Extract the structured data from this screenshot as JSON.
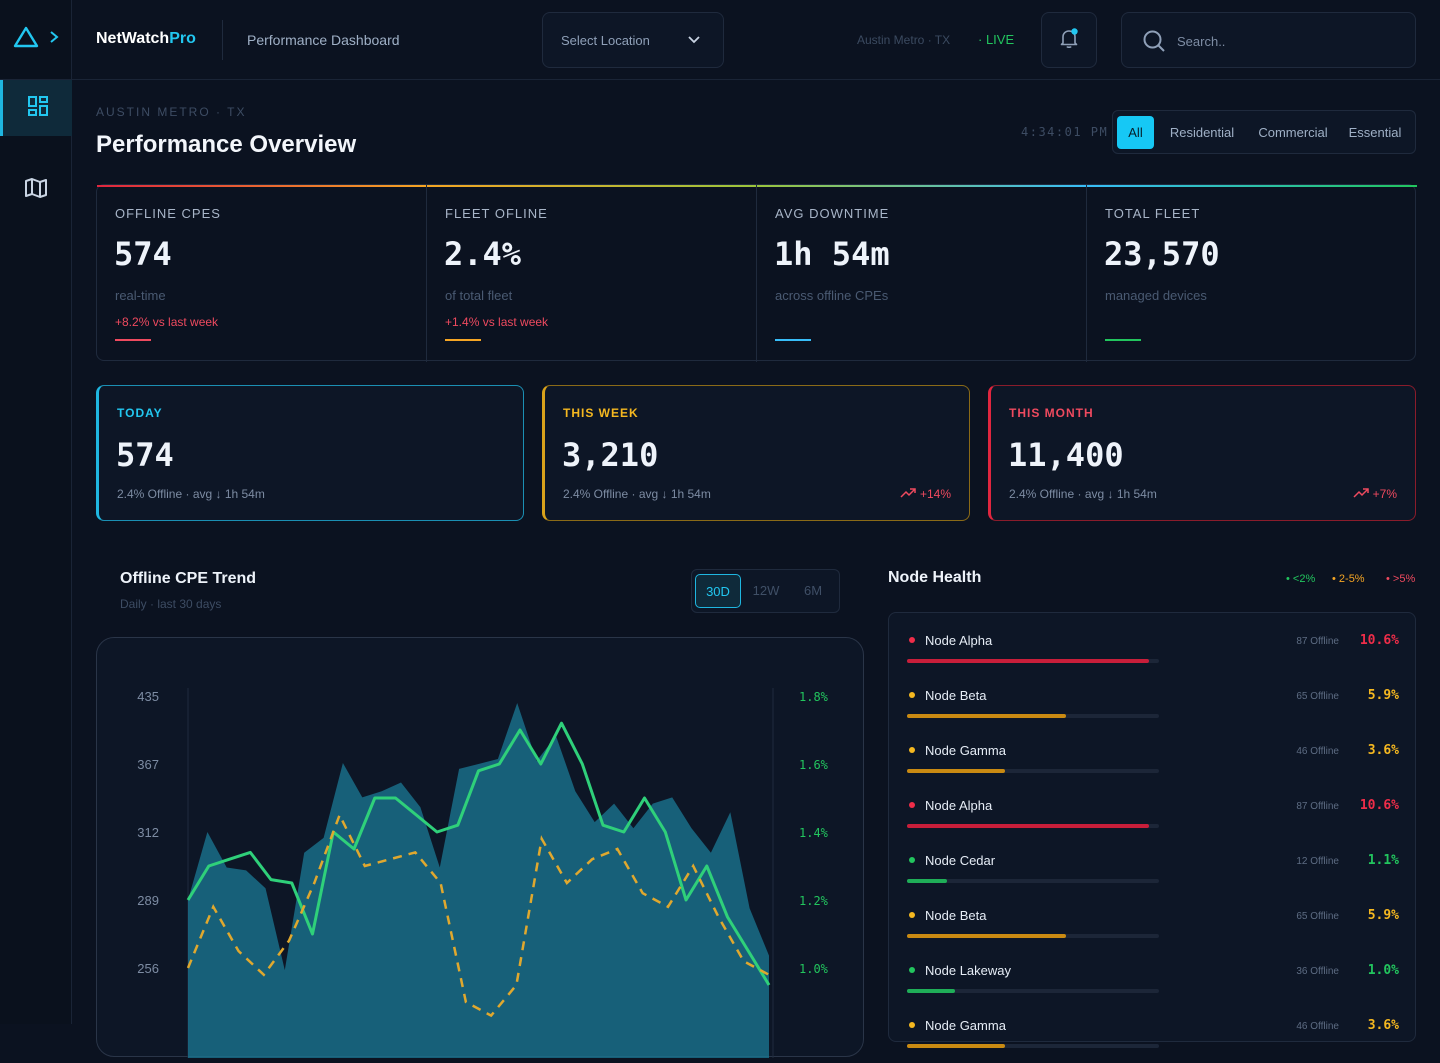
{
  "header": {
    "brand_main": "NetWatch",
    "brand_accent": "Pro",
    "page_name": "Performance Dashboard",
    "location_select": "Select Location",
    "location_meta": "Austin Metro · TX",
    "live_label": "· LIVE",
    "search_placeholder": "Search.."
  },
  "overview": {
    "eyebrow": "AUSTIN METRO · TX",
    "title": "Performance Overview",
    "clock": "4:34:01 PM",
    "filters": [
      "All",
      "Residential",
      "Commercial",
      "Essential"
    ],
    "active_filter": "All"
  },
  "kpis": [
    {
      "label": "OFFLINE CPES",
      "value": "574",
      "sub": "real-time",
      "delta": "+8.2% vs last week",
      "color": "#ef4a5f"
    },
    {
      "label": "FLEET OFLINE",
      "value": "2.4%",
      "sub": "of total fleet",
      "delta": "+1.4% vs last week",
      "color": "#f5a524"
    },
    {
      "label": "AVG DOWNTIME",
      "value": "1h 54m",
      "sub": "across offline CPEs",
      "delta": "",
      "color": "#38bdf8"
    },
    {
      "label": "TOTAL FLEET",
      "value": "23,570",
      "sub": "managed devices",
      "delta": "",
      "color": "#22c55e"
    }
  ],
  "periods": [
    {
      "label": "TODAY",
      "value": "574",
      "sub": "2.4% Offline · avg ↓ 1h 54m",
      "trend": "",
      "color": "#1fb6e0"
    },
    {
      "label": "THIS WEEK",
      "value": "3,210",
      "sub": "2.4% Offline · avg ↓ 1h 54m",
      "trend": "+14%",
      "color": "#d9a21b"
    },
    {
      "label": "THIS MONTH",
      "value": "11,400",
      "sub": "2.4% Offline · avg ↓ 1h 54m",
      "trend": "+7%",
      "color": "#e0263f"
    }
  ],
  "trend": {
    "title": "Offline CPE Trend",
    "subtitle": "Daily · last 30 days",
    "ranges": [
      "30D",
      "12W",
      "6M"
    ],
    "active_range": "30D"
  },
  "chart_data": {
    "type": "area",
    "y_left_ticks": [
      "435",
      "367",
      "312",
      "289",
      "256"
    ],
    "y_right_ticks": [
      "1.8%",
      "1.6%",
      "1.4%",
      "1.2%",
      "1.0%"
    ],
    "series": [
      {
        "kind": "area",
        "color": "#1b7a96",
        "values": [
          289,
          312,
          300,
          299,
          293,
          255,
          305,
          310,
          368,
          340,
          345,
          352,
          332,
          300,
          363,
          367,
          372,
          428,
          370,
          395,
          345,
          320,
          335,
          315,
          335,
          340,
          315,
          305,
          328,
          285,
          262
        ]
      },
      {
        "kind": "line",
        "color": "#2fd07a",
        "values": [
          1.2,
          1.3,
          1.32,
          1.34,
          1.26,
          1.25,
          1.1,
          1.4,
          1.35,
          1.5,
          1.5,
          1.45,
          1.4,
          1.42,
          1.58,
          1.6,
          1.7,
          1.6,
          1.72,
          1.6,
          1.42,
          1.4,
          1.5,
          1.4,
          1.2,
          1.3,
          1.15,
          1.05,
          0.95
        ]
      },
      {
        "kind": "dashed",
        "color": "#e0a82e",
        "values": [
          1.0,
          1.18,
          1.05,
          0.98,
          1.08,
          1.25,
          1.45,
          1.3,
          1.32,
          1.34,
          1.25,
          0.9,
          0.86,
          0.95,
          1.38,
          1.25,
          1.32,
          1.35,
          1.22,
          1.18,
          1.3,
          1.15,
          1.02,
          0.98
        ]
      }
    ]
  },
  "node_health": {
    "title": "Node Health",
    "legend": [
      {
        "label": "• <2%",
        "color": "#22c55e"
      },
      {
        "label": "• 2-5%",
        "color": "#f5a524"
      },
      {
        "label": "• >5%",
        "color": "#ef4a5f"
      }
    ],
    "nodes": [
      {
        "name": "Node Alpha",
        "offline": "87 Offline",
        "pct": "10.6%",
        "level": 0.96,
        "color": "#ef2d49",
        "bar": "#c81e3a"
      },
      {
        "name": "Node Beta",
        "offline": "65 Offline",
        "pct": "5.9%",
        "level": 0.63,
        "color": "#f5b820",
        "bar": "#c98a12"
      },
      {
        "name": "Node Gamma",
        "offline": "46 Offline",
        "pct": "3.6%",
        "level": 0.39,
        "color": "#f5b820",
        "bar": "#c98a12"
      },
      {
        "name": "Node Alpha",
        "offline": "87 Offline",
        "pct": "10.6%",
        "level": 0.96,
        "color": "#ef2d49",
        "bar": "#c81e3a"
      },
      {
        "name": "Node Cedar",
        "offline": "12 Offline",
        "pct": "1.1%",
        "level": 0.16,
        "color": "#22c55e",
        "bar": "#1fae58"
      },
      {
        "name": "Node Beta",
        "offline": "65 Offline",
        "pct": "5.9%",
        "level": 0.63,
        "color": "#f5b820",
        "bar": "#c98a12"
      },
      {
        "name": "Node Lakeway",
        "offline": "36 Offline",
        "pct": "1.0%",
        "level": 0.19,
        "color": "#22c55e",
        "bar": "#1fae58"
      },
      {
        "name": "Node Gamma",
        "offline": "46 Offline",
        "pct": "3.6%",
        "level": 0.39,
        "color": "#f5b820",
        "bar": "#c98a12"
      }
    ]
  }
}
